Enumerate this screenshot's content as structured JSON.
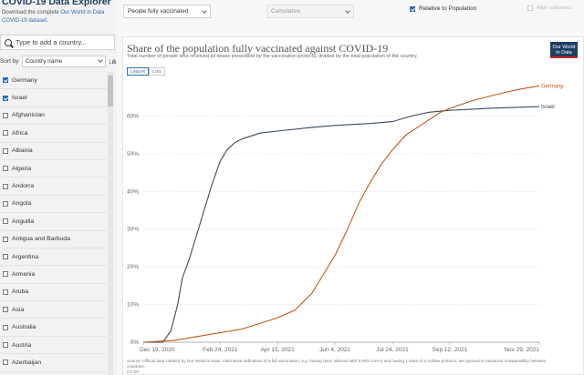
{
  "sidebar": {
    "title": "COVID-19 Data Explorer",
    "desc_prefix": "Download the complete ",
    "desc_link": "Our World in Data COVID-19 dataset.",
    "search_placeholder": "Type to add a country...",
    "sort_label": "Sort by",
    "sort_value": "Country name",
    "sort_dir_icon": "↓a",
    "countries": [
      {
        "name": "Germany",
        "checked": true
      },
      {
        "name": "Israel",
        "checked": true
      },
      {
        "name": "Afghanistan",
        "checked": false
      },
      {
        "name": "Africa",
        "checked": false
      },
      {
        "name": "Albania",
        "checked": false
      },
      {
        "name": "Algeria",
        "checked": false
      },
      {
        "name": "Andorra",
        "checked": false
      },
      {
        "name": "Angola",
        "checked": false
      },
      {
        "name": "Anguilla",
        "checked": false
      },
      {
        "name": "Antigua and Barbuda",
        "checked": false
      },
      {
        "name": "Argentina",
        "checked": false
      },
      {
        "name": "Armenia",
        "checked": false
      },
      {
        "name": "Aruba",
        "checked": false
      },
      {
        "name": "Asia",
        "checked": false
      },
      {
        "name": "Australia",
        "checked": false
      },
      {
        "name": "Austria",
        "checked": false
      },
      {
        "name": "Azerbaijan",
        "checked": false
      }
    ]
  },
  "controls": {
    "metric": "People fully vaccinated",
    "interval": "Cumulative",
    "relative_label": "Relative to Population",
    "relative_checked": true,
    "align_label": "Align outbreaks",
    "align_checked": false
  },
  "chart": {
    "logo_line1": "Our World",
    "logo_line2": "in Data",
    "scale_linear": "LINEAR",
    "scale_log": "LOG",
    "footer_source": "Source: Official data collated by Our World in Data. Alternative definitions of a full vaccination, e.g. having been infected with SARS-CoV-2 and having 1 dose of a 2-dose protocol, are ignored to maximize comparability between countries.",
    "footer_license": "CC BY"
  },
  "chart_data": {
    "type": "line",
    "title": "Share of the population fully vaccinated against COVID-19",
    "subtitle": "Total number of people who received all doses prescribed by the vaccination protocol, divided by the total population of the country.",
    "y_tick_labels": [
      "0%",
      "10%",
      "20%",
      "30%",
      "40%",
      "50%",
      "60%"
    ],
    "ylim": [
      0,
      70
    ],
    "grid": true,
    "x_tick_labels": [
      "Dec 19, 2020",
      "Feb 24, 2021",
      "Apr 15, 2021",
      "Jun 4, 2021",
      "Jul 24, 2021",
      "Sep 12, 2021",
      "Nov 29, 2021"
    ],
    "x_tick_dates": [
      "2020-12-19",
      "2021-02-24",
      "2021-04-15",
      "2021-06-04",
      "2021-07-24",
      "2021-09-12",
      "2021-11-29"
    ],
    "series": [
      {
        "name": "Israel",
        "color": "#3a4a5e",
        "points": [
          [
            "2020-12-19",
            0
          ],
          [
            "2021-01-05",
            0
          ],
          [
            "2021-01-12",
            3
          ],
          [
            "2021-01-18",
            10
          ],
          [
            "2021-01-22",
            17
          ],
          [
            "2021-01-28",
            22
          ],
          [
            "2021-02-03",
            28
          ],
          [
            "2021-02-10",
            35
          ],
          [
            "2021-02-17",
            42
          ],
          [
            "2021-02-24",
            48
          ],
          [
            "2021-03-02",
            51
          ],
          [
            "2021-03-09",
            53
          ],
          [
            "2021-03-16",
            54
          ],
          [
            "2021-03-31",
            55.5
          ],
          [
            "2021-04-15",
            56
          ],
          [
            "2021-05-15",
            57
          ],
          [
            "2021-06-04",
            57.5
          ],
          [
            "2021-07-04",
            58
          ],
          [
            "2021-07-24",
            58.5
          ],
          [
            "2021-08-10",
            60
          ],
          [
            "2021-08-25",
            61
          ],
          [
            "2021-09-12",
            61.5
          ],
          [
            "2021-10-15",
            62
          ],
          [
            "2021-11-29",
            62.5
          ]
        ]
      },
      {
        "name": "Germany",
        "color": "#c05917",
        "points": [
          [
            "2020-12-19",
            0
          ],
          [
            "2021-01-15",
            0.5
          ],
          [
            "2021-02-24",
            2.5
          ],
          [
            "2021-03-15",
            3.5
          ],
          [
            "2021-04-15",
            6.5
          ],
          [
            "2021-04-30",
            8.5
          ],
          [
            "2021-05-15",
            13
          ],
          [
            "2021-05-25",
            18
          ],
          [
            "2021-06-04",
            23
          ],
          [
            "2021-06-15",
            30
          ],
          [
            "2021-06-25",
            37
          ],
          [
            "2021-07-04",
            42
          ],
          [
            "2021-07-14",
            47
          ],
          [
            "2021-07-24",
            51
          ],
          [
            "2021-08-05",
            55
          ],
          [
            "2021-08-20",
            58
          ],
          [
            "2021-09-04",
            61
          ],
          [
            "2021-09-12",
            62
          ],
          [
            "2021-10-01",
            64
          ],
          [
            "2021-10-20",
            65.5
          ],
          [
            "2021-11-10",
            67
          ],
          [
            "2021-11-29",
            68
          ]
        ]
      }
    ]
  }
}
